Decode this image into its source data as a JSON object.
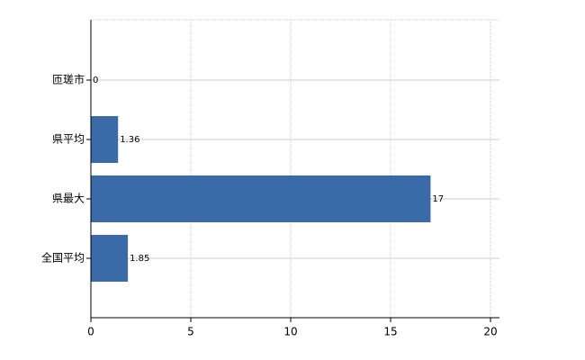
{
  "chart_data": {
    "type": "bar",
    "orientation": "horizontal",
    "categories": [
      "匝瑳市",
      "県平均",
      "県最大",
      "全国平均"
    ],
    "values": [
      0,
      1.36,
      17,
      1.85
    ],
    "color": "#3a6aa8",
    "xlim": [
      0,
      20
    ],
    "xticks": [
      0,
      5,
      10,
      15,
      20
    ],
    "grid": true
  }
}
